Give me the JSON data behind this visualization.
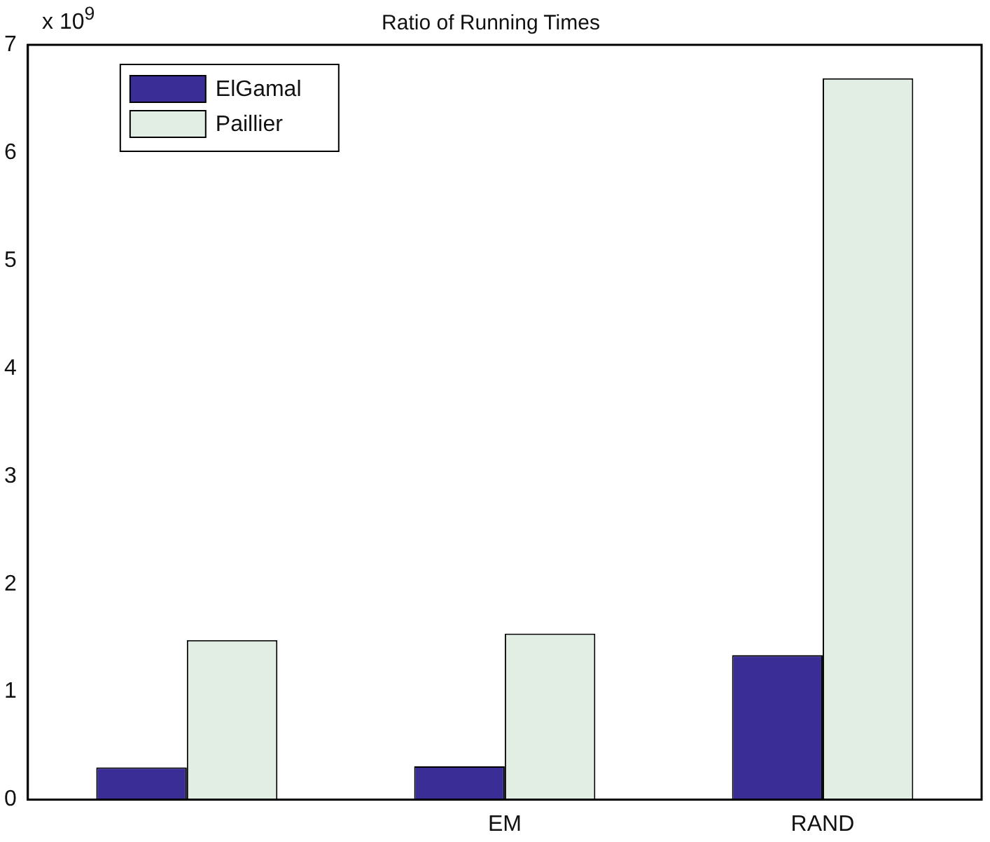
{
  "chart_data": {
    "type": "bar",
    "title": "Ratio of Running Times",
    "categories": [
      null,
      "EM",
      "RAND"
    ],
    "series": [
      {
        "name": "ElGamal",
        "color": "#3a2e96",
        "values": [
          0.3,
          0.31,
          1.34
        ]
      },
      {
        "name": "Paillier",
        "color": "#e2eee4",
        "values": [
          1.48,
          1.54,
          6.69
        ]
      }
    ],
    "ylim": [
      0,
      7
    ],
    "yticks": [
      0,
      1,
      2,
      3,
      4,
      5,
      6,
      7
    ],
    "grid": false,
    "legend": "top left",
    "annotations": [
      "x 10$^{9}$"
    ]
  }
}
